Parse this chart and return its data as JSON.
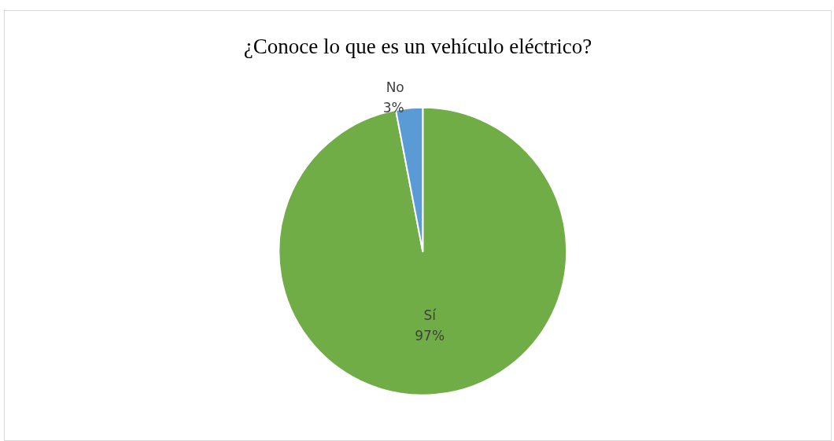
{
  "chart_data": {
    "type": "pie",
    "title": "¿Conoce lo que es un vehículo eléctrico?",
    "categories": [
      "Sí",
      "No"
    ],
    "values": [
      97,
      3
    ],
    "colors": [
      "#70ad47",
      "#5b9bd5"
    ],
    "value_labels": [
      "97%",
      "3%"
    ],
    "legend": false
  }
}
